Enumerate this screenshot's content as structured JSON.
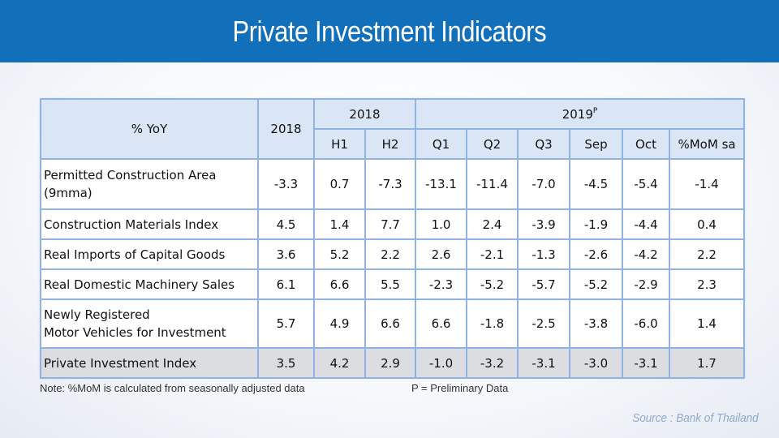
{
  "header": {
    "title": "Private Investment Indicators"
  },
  "table": {
    "corner_label": "% YoY",
    "col_2018": "2018",
    "group_2018": "2018",
    "group_2019": "2019",
    "group_2019_sup": "P",
    "subheaders": [
      "H1",
      "H2",
      "Q1",
      "Q2",
      "Q3",
      "Sep",
      "Oct",
      "%MoM sa"
    ],
    "rows": [
      {
        "label": "Permitted Construction Area",
        "label2": "(9mma)",
        "values": [
          "-3.3",
          "0.7",
          "-7.3",
          "-13.1",
          "-11.4",
          "-7.0",
          "-4.5",
          "-5.4",
          "-1.4"
        ]
      },
      {
        "label": "Construction Materials Index",
        "label2": "",
        "values": [
          "4.5",
          "1.4",
          "7.7",
          "1.0",
          "2.4",
          "-3.9",
          "-1.9",
          "-4.4",
          "0.4"
        ]
      },
      {
        "label": "Real Imports of Capital Goods",
        "label2": "",
        "values": [
          "3.6",
          "5.2",
          "2.2",
          "2.6",
          "-2.1",
          "-1.3",
          "-2.6",
          "-4.2",
          "2.2"
        ]
      },
      {
        "label": "Real Domestic Machinery Sales",
        "label2": "",
        "values": [
          "6.1",
          "6.6",
          "5.5",
          "-2.3",
          "-5.2",
          "-5.7",
          "-5.2",
          "-2.9",
          "2.3"
        ]
      },
      {
        "label": "Newly Registered",
        "label2": "Motor Vehicles for Investment",
        "values": [
          "5.7",
          "4.9",
          "6.6",
          "6.6",
          "-1.8",
          "-2.5",
          "-3.8",
          "-6.0",
          "1.4"
        ]
      },
      {
        "label": "Private Investment Index",
        "label2": "",
        "values": [
          "3.5",
          "4.2",
          "2.9",
          "-1.0",
          "-3.2",
          "-3.1",
          "-3.0",
          "-3.1",
          "1.7"
        ]
      }
    ]
  },
  "footer": {
    "note": "Note: %MoM is calculated from seasonally adjusted data",
    "prelim": "P = Preliminary Data",
    "source": "Source : Bank of Thailand"
  }
}
